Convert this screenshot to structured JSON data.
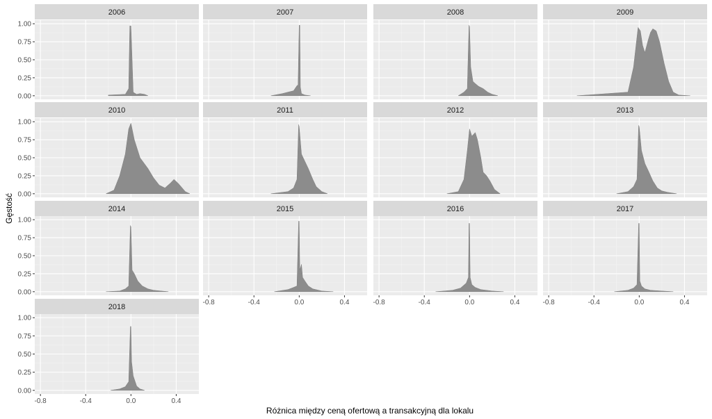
{
  "chart_data": {
    "type": "area",
    "layout": "facet_wrap",
    "xlabel": "Różnica między ceną ofertową a transakcyjną dla lokalu",
    "ylabel": "Gęstość",
    "xlim": [
      -0.85,
      0.6
    ],
    "ylim": [
      -0.05,
      1.05
    ],
    "x_ticks": [
      -0.8,
      -0.4,
      0.0,
      0.4
    ],
    "x_tick_labels": [
      "-0.8",
      "-0.4",
      "0.0",
      "0.4"
    ],
    "y_ticks": [
      0,
      0.25,
      0.5,
      0.75,
      1
    ],
    "y_tick_labels": [
      "0.00",
      "0.25",
      "0.50",
      "0.75",
      "1.00"
    ],
    "grid": true,
    "fill_color": "#8c8c8c",
    "panel_bg": "#ebebeb",
    "strip_bg": "#d9d9d9",
    "panels": [
      {
        "label": "2006",
        "x": [
          -0.2,
          -0.05,
          -0.02,
          -0.01,
          0.0,
          0.01,
          0.02,
          0.03,
          0.05,
          0.08,
          0.12,
          0.15
        ],
        "density": [
          0.01,
          0.02,
          0.1,
          0.97,
          0.97,
          0.5,
          0.05,
          0.04,
          0.02,
          0.03,
          0.02,
          0.0
        ]
      },
      {
        "label": "2007",
        "x": [
          -0.25,
          -0.15,
          -0.1,
          -0.05,
          -0.02,
          -0.01,
          0.0,
          0.005,
          0.01,
          0.02,
          0.05,
          0.1
        ],
        "density": [
          0.0,
          0.03,
          0.05,
          0.07,
          0.14,
          0.15,
          0.98,
          0.98,
          0.12,
          0.03,
          0.01,
          0.0
        ]
      },
      {
        "label": "2008",
        "x": [
          -0.1,
          -0.05,
          -0.02,
          -0.005,
          0.0,
          0.01,
          0.03,
          0.05,
          0.08,
          0.12,
          0.16,
          0.2,
          0.25
        ],
        "density": [
          0.0,
          0.05,
          0.1,
          0.98,
          0.96,
          0.4,
          0.2,
          0.17,
          0.13,
          0.1,
          0.05,
          0.02,
          0.0
        ]
      },
      {
        "label": "2009",
        "x": [
          -0.55,
          -0.1,
          -0.05,
          -0.01,
          0.01,
          0.03,
          0.05,
          0.08,
          0.1,
          0.12,
          0.15,
          0.18,
          0.22,
          0.26,
          0.3,
          0.35,
          0.45
        ],
        "density": [
          0.0,
          0.05,
          0.4,
          0.95,
          0.9,
          0.7,
          0.6,
          0.78,
          0.88,
          0.93,
          0.9,
          0.75,
          0.45,
          0.2,
          0.05,
          0.01,
          0.0
        ]
      },
      {
        "label": "2010",
        "x": [
          -0.22,
          -0.15,
          -0.1,
          -0.05,
          -0.02,
          0.0,
          0.03,
          0.08,
          0.15,
          0.2,
          0.25,
          0.3,
          0.35,
          0.38,
          0.42,
          0.48,
          0.52
        ],
        "density": [
          0.0,
          0.05,
          0.25,
          0.55,
          0.9,
          0.98,
          0.75,
          0.5,
          0.35,
          0.22,
          0.12,
          0.08,
          0.15,
          0.2,
          0.14,
          0.03,
          0.0
        ]
      },
      {
        "label": "2011",
        "x": [
          -0.25,
          -0.1,
          -0.05,
          -0.02,
          -0.005,
          0.0,
          0.02,
          0.05,
          0.08,
          0.12,
          0.15,
          0.2,
          0.25
        ],
        "density": [
          0.0,
          0.03,
          0.08,
          0.2,
          0.96,
          0.93,
          0.55,
          0.45,
          0.35,
          0.2,
          0.1,
          0.03,
          0.0
        ]
      },
      {
        "label": "2012",
        "x": [
          -0.2,
          -0.1,
          -0.05,
          -0.02,
          0.0,
          0.02,
          0.05,
          0.07,
          0.1,
          0.12,
          0.15,
          0.18,
          0.22,
          0.27
        ],
        "density": [
          0.0,
          0.03,
          0.2,
          0.6,
          0.9,
          0.8,
          0.85,
          0.75,
          0.5,
          0.3,
          0.25,
          0.18,
          0.06,
          0.0
        ]
      },
      {
        "label": "2013",
        "x": [
          -0.2,
          -0.1,
          -0.05,
          -0.02,
          -0.005,
          0.0,
          0.02,
          0.05,
          0.08,
          0.12,
          0.16,
          0.2,
          0.25,
          0.33
        ],
        "density": [
          0.0,
          0.03,
          0.1,
          0.2,
          0.95,
          0.93,
          0.6,
          0.42,
          0.32,
          0.18,
          0.08,
          0.04,
          0.02,
          0.0
        ]
      },
      {
        "label": "2014",
        "x": [
          -0.22,
          -0.1,
          -0.05,
          -0.02,
          -0.005,
          0.0,
          0.01,
          0.03,
          0.06,
          0.1,
          0.15,
          0.2,
          0.33
        ],
        "density": [
          0.0,
          0.01,
          0.04,
          0.08,
          0.92,
          0.9,
          0.3,
          0.25,
          0.15,
          0.08,
          0.04,
          0.02,
          0.0
        ]
      },
      {
        "label": "2015",
        "x": [
          -0.22,
          -0.1,
          -0.05,
          -0.02,
          -0.005,
          0.0,
          0.005,
          0.02,
          0.03,
          0.05,
          0.08,
          0.12,
          0.2,
          0.3
        ],
        "density": [
          0.0,
          0.03,
          0.06,
          0.08,
          0.98,
          0.98,
          0.3,
          0.38,
          0.2,
          0.15,
          0.08,
          0.04,
          0.01,
          0.0
        ]
      },
      {
        "label": "2016",
        "x": [
          -0.3,
          -0.15,
          -0.08,
          -0.03,
          -0.01,
          -0.005,
          0.0,
          0.005,
          0.02,
          0.05,
          0.1,
          0.2,
          0.3
        ],
        "density": [
          0.0,
          0.02,
          0.05,
          0.12,
          0.2,
          0.95,
          0.95,
          0.2,
          0.1,
          0.06,
          0.03,
          0.01,
          0.0
        ]
      },
      {
        "label": "2017",
        "x": [
          -0.22,
          -0.1,
          -0.05,
          -0.02,
          -0.005,
          0.0,
          0.005,
          0.02,
          0.05,
          0.1,
          0.2,
          0.3
        ],
        "density": [
          0.0,
          0.02,
          0.05,
          0.1,
          0.95,
          0.95,
          0.15,
          0.08,
          0.04,
          0.02,
          0.01,
          0.0
        ]
      },
      {
        "label": "2018",
        "x": [
          -0.18,
          -0.1,
          -0.05,
          -0.02,
          -0.005,
          0.0,
          0.005,
          0.02,
          0.05,
          0.08,
          0.12
        ],
        "density": [
          0.0,
          0.02,
          0.05,
          0.12,
          0.88,
          0.88,
          0.4,
          0.2,
          0.06,
          0.02,
          0.0
        ]
      }
    ]
  }
}
